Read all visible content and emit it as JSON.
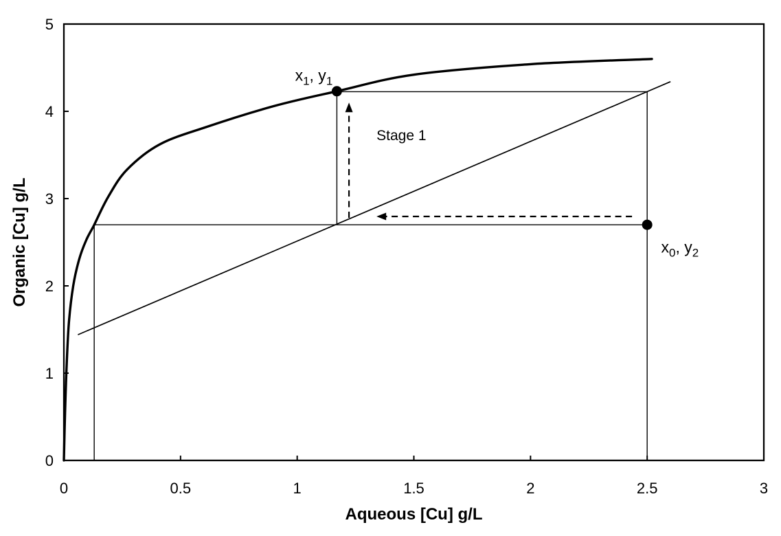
{
  "page": {
    "background": "#ffffff",
    "foreground": "#000000"
  },
  "chart_data": {
    "type": "line",
    "title": "",
    "xlabel": "Aqueous [Cu] g/L",
    "ylabel": "Organic [Cu] g/L",
    "xlim": [
      0,
      3
    ],
    "ylim": [
      0,
      5
    ],
    "x_ticks": [
      "0",
      "0.5",
      "1",
      "1.5",
      "2",
      "2.5",
      "3"
    ],
    "x_tick_values": [
      0,
      0.5,
      1,
      1.5,
      2,
      2.5,
      3
    ],
    "y_ticks": [
      "0",
      "1",
      "2",
      "3",
      "4",
      "5"
    ],
    "y_tick_values": [
      0,
      1,
      2,
      3,
      4,
      5
    ],
    "grid": false,
    "legend": false,
    "frame": true,
    "colors": {
      "line": "#000000",
      "text": "#000000",
      "background": "#ffffff"
    },
    "series": [
      {
        "name": "extraction-isotherm",
        "style": "thick-curve",
        "points": [
          [
            0,
            0
          ],
          [
            0.005,
            0.55
          ],
          [
            0.012,
            1.1
          ],
          [
            0.022,
            1.6
          ],
          [
            0.04,
            2.0
          ],
          [
            0.065,
            2.3
          ],
          [
            0.095,
            2.52
          ],
          [
            0.13,
            2.7
          ],
          [
            0.19,
            3.02
          ],
          [
            0.27,
            3.33
          ],
          [
            0.41,
            3.62
          ],
          [
            0.61,
            3.82
          ],
          [
            0.9,
            4.06
          ],
          [
            1.17,
            4.23
          ],
          [
            1.5,
            4.42
          ],
          [
            2.0,
            4.54
          ],
          [
            2.52,
            4.6
          ]
        ]
      },
      {
        "name": "operating-line",
        "style": "thin-line",
        "points": [
          [
            0.06,
            1.44
          ],
          [
            2.6,
            4.34
          ]
        ]
      }
    ],
    "construction_lines": [
      {
        "name": "raffinate-vertical",
        "points": [
          [
            0.13,
            0
          ],
          [
            0.13,
            2.7
          ]
        ]
      },
      {
        "name": "y2-horizontal",
        "points": [
          [
            0.13,
            2.7
          ],
          [
            2.5,
            2.7
          ]
        ]
      },
      {
        "name": "stage1-step-vertical",
        "points": [
          [
            1.17,
            2.7
          ],
          [
            1.17,
            4.225
          ]
        ]
      },
      {
        "name": "y1-horizontal",
        "points": [
          [
            1.17,
            4.225
          ],
          [
            2.5,
            4.225
          ]
        ]
      },
      {
        "name": "feed-vertical",
        "points": [
          [
            2.5,
            0
          ],
          [
            2.5,
            4.225
          ]
        ]
      }
    ],
    "markers": [
      {
        "name": "point-x1-y1",
        "x": 1.17,
        "y": 4.23,
        "label_parts": [
          {
            "t": "x"
          },
          {
            "t": "1",
            "sub": true
          },
          {
            "t": ", y"
          },
          {
            "t": "1",
            "sub": true
          }
        ],
        "label_anchor": "end",
        "label_pos": [
          1.152,
          4.35
        ]
      },
      {
        "name": "point-x0-y2",
        "x": 2.5,
        "y": 2.7,
        "label_parts": [
          {
            "t": "x"
          },
          {
            "t": "0",
            "sub": true
          },
          {
            "t": ", y"
          },
          {
            "t": "2",
            "sub": true
          }
        ],
        "label_anchor": "start",
        "label_pos": [
          2.56,
          2.38
        ]
      }
    ],
    "arrows": [
      {
        "name": "transfer-arrow-left",
        "from": [
          2.435,
          2.795
        ],
        "to": [
          1.34,
          2.795
        ]
      },
      {
        "name": "stage1-arrow-up",
        "from": [
          1.222,
          2.78
        ],
        "to": [
          1.222,
          4.1
        ]
      }
    ],
    "annotations": [
      {
        "name": "stage1-label",
        "text": "Stage 1",
        "pos": [
          1.34,
          3.67
        ],
        "anchor": "start"
      }
    ]
  }
}
